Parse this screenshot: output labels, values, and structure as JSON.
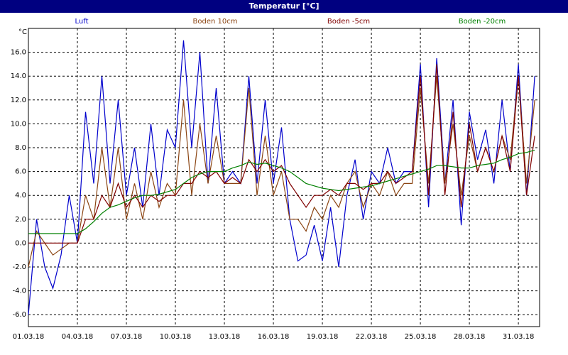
{
  "chart_data": {
    "type": "line",
    "title": "Temperatur [°C]",
    "y_unit": "°C",
    "x": [
      0,
      0.5,
      1,
      1.5,
      2,
      2.5,
      3,
      3.5,
      4,
      4.5,
      5,
      5.5,
      6,
      6.5,
      7,
      7.5,
      8,
      8.5,
      9,
      9.5,
      10,
      10.5,
      11,
      11.5,
      12,
      12.5,
      13,
      13.5,
      14,
      14.5,
      15,
      15.5,
      16,
      16.5,
      17,
      17.5,
      18,
      18.5,
      19,
      19.5,
      20,
      20.5,
      21,
      21.5,
      22,
      22.5,
      23,
      23.5,
      24,
      24.5,
      25,
      25.5,
      26,
      26.5,
      27,
      27.5,
      28,
      28.5,
      29,
      29.5,
      30,
      30.5,
      31
    ],
    "xlim": [
      0,
      31.3
    ],
    "xticks": [
      {
        "value": 0,
        "label": "01.03.18"
      },
      {
        "value": 3,
        "label": "04.03.18"
      },
      {
        "value": 6,
        "label": "07.03.18"
      },
      {
        "value": 9,
        "label": "10.03.18"
      },
      {
        "value": 12,
        "label": "13.03.18"
      },
      {
        "value": 15,
        "label": "16.03.18"
      },
      {
        "value": 18,
        "label": "19.03.18"
      },
      {
        "value": 21,
        "label": "22.03.18"
      },
      {
        "value": 24,
        "label": "25.03.18"
      },
      {
        "value": 27,
        "label": "28.03.18"
      },
      {
        "value": 30,
        "label": "31.03.18"
      }
    ],
    "ylim": [
      -7,
      18
    ],
    "yticks": [
      {
        "value": -6,
        "label": "-6.0"
      },
      {
        "value": -4,
        "label": "-4.0"
      },
      {
        "value": -2,
        "label": "-2.0"
      },
      {
        "value": 0,
        "label": "0.0"
      },
      {
        "value": 2,
        "label": "2.0"
      },
      {
        "value": 4,
        "label": "4.0"
      },
      {
        "value": 6,
        "label": "6.0"
      },
      {
        "value": 8,
        "label": "8.0"
      },
      {
        "value": 10,
        "label": "10.0"
      },
      {
        "value": 12,
        "label": "12.0"
      },
      {
        "value": 14,
        "label": "14.0"
      },
      {
        "value": 16,
        "label": "16.0"
      }
    ],
    "grid": true,
    "series": [
      {
        "name": "Luft",
        "color": "#0000cc",
        "values": [
          -6,
          2,
          -2,
          -3.8,
          -1,
          4,
          0,
          11,
          5,
          14,
          5,
          12,
          4,
          8,
          3,
          10,
          4,
          9.5,
          8,
          17,
          8,
          16,
          5,
          13,
          5,
          6,
          5,
          14,
          5,
          12,
          5,
          9.7,
          2,
          -1.5,
          -1,
          1.5,
          -1.5,
          3,
          -2,
          4,
          7,
          2,
          6,
          5,
          8,
          5,
          6,
          6,
          15,
          3,
          15.5,
          5,
          12,
          1.5,
          11,
          7,
          9.5,
          5,
          12,
          6,
          15,
          4,
          14
        ]
      },
      {
        "name": "Boden 10cm",
        "color": "#8b4513",
        "values": [
          -2,
          1,
          0,
          -1,
          -0.5,
          0,
          0,
          4,
          2,
          8,
          3,
          8,
          2,
          5,
          2,
          6,
          3,
          5,
          4,
          12,
          4,
          10,
          5,
          9,
          5,
          5,
          5,
          13,
          4,
          9,
          4,
          6,
          2,
          2,
          1,
          3,
          2,
          4,
          3,
          5,
          6,
          3,
          5,
          4,
          6,
          4,
          5,
          5,
          13,
          5,
          14,
          5,
          10,
          4,
          9,
          6,
          8,
          6,
          9,
          7,
          14,
          5,
          12
        ]
      },
      {
        "name": "Boden -5cm",
        "color": "#800000",
        "values": [
          0,
          0,
          0,
          0,
          0,
          0,
          0,
          2,
          2,
          4,
          3,
          5,
          3,
          4,
          3,
          4,
          3.5,
          4,
          4,
          5,
          5,
          6,
          5.5,
          6,
          5,
          5.5,
          5,
          7,
          6,
          7,
          6,
          6.5,
          5,
          4,
          3,
          4,
          4,
          4.5,
          4,
          5,
          5,
          4.5,
          5,
          5,
          6,
          5,
          5.5,
          6,
          14,
          4,
          15,
          4,
          11,
          3,
          10,
          6,
          8,
          6,
          9,
          6,
          14,
          4,
          9
        ]
      },
      {
        "name": "Boden -20cm",
        "color": "#008000",
        "values": [
          0.8,
          0.8,
          0.8,
          0.8,
          0.8,
          0.8,
          0.8,
          1.2,
          1.8,
          2.5,
          3,
          3.2,
          3.5,
          3.8,
          4,
          4,
          4.1,
          4.3,
          4.5,
          5,
          5.5,
          5.8,
          6,
          6,
          6,
          6.3,
          6.5,
          6.8,
          6.6,
          6.7,
          6.5,
          6.3,
          6,
          5.5,
          5,
          4.8,
          4.6,
          4.5,
          4.4,
          4.5,
          4.6,
          4.7,
          4.8,
          5,
          5.2,
          5.4,
          5.6,
          5.8,
          6,
          6.2,
          6.5,
          6.5,
          6.4,
          6.3,
          6.3,
          6.5,
          6.6,
          6.7,
          7,
          7.2,
          7.5,
          7.6,
          7.8
        ]
      }
    ]
  }
}
